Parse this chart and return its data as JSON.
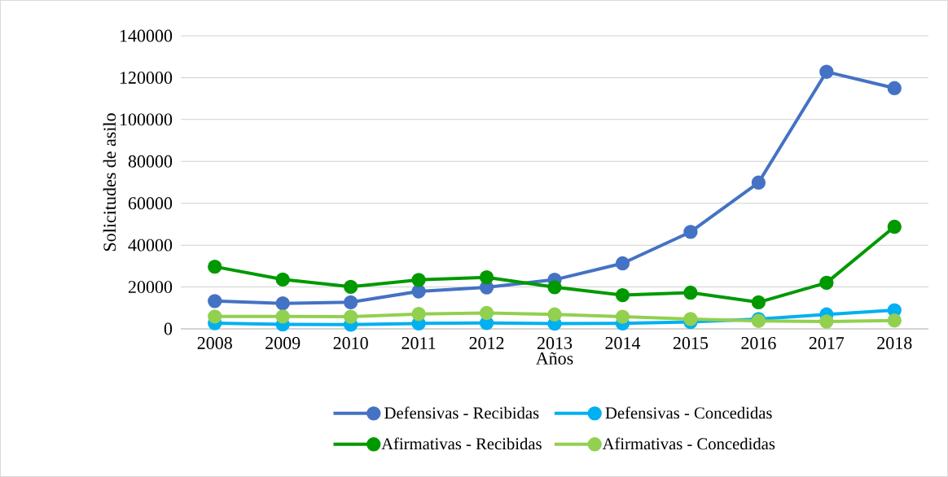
{
  "chart_data": {
    "type": "line",
    "xlabel": "Años",
    "ylabel": "Solicitudes de asilo",
    "categories": [
      "2008",
      "2009",
      "2010",
      "2011",
      "2012",
      "2013",
      "2014",
      "2015",
      "2016",
      "2017",
      "2018"
    ],
    "series": [
      {
        "name": "Defensivas - Recibidas",
        "color": "#4472c4",
        "values": [
          13300,
          12200,
          12700,
          17900,
          19800,
          23500,
          31300,
          46300,
          69900,
          122800,
          115000
        ]
      },
      {
        "name": "Defensivas - Concedidas",
        "color": "#00b0f0",
        "values": [
          2700,
          2100,
          2000,
          2600,
          2800,
          2500,
          2600,
          3300,
          4700,
          6900,
          8900
        ]
      },
      {
        "name": "Afirmativas - Recibidas",
        "color": "#009900",
        "values": [
          29700,
          23600,
          20100,
          23400,
          24600,
          19900,
          16100,
          17300,
          12700,
          22000,
          48800
        ]
      },
      {
        "name": "Afirmativas - Concedidas",
        "color": "#92d050",
        "values": [
          5900,
          5900,
          5800,
          7100,
          7600,
          6900,
          5800,
          4700,
          3800,
          3500,
          4000
        ]
      }
    ],
    "ylim": [
      0,
      140000
    ],
    "yticks": [
      0,
      20000,
      40000,
      60000,
      80000,
      100000,
      120000,
      140000
    ],
    "grid": "y",
    "legend": "bottom",
    "marker": "circle",
    "line_style": "solid"
  }
}
